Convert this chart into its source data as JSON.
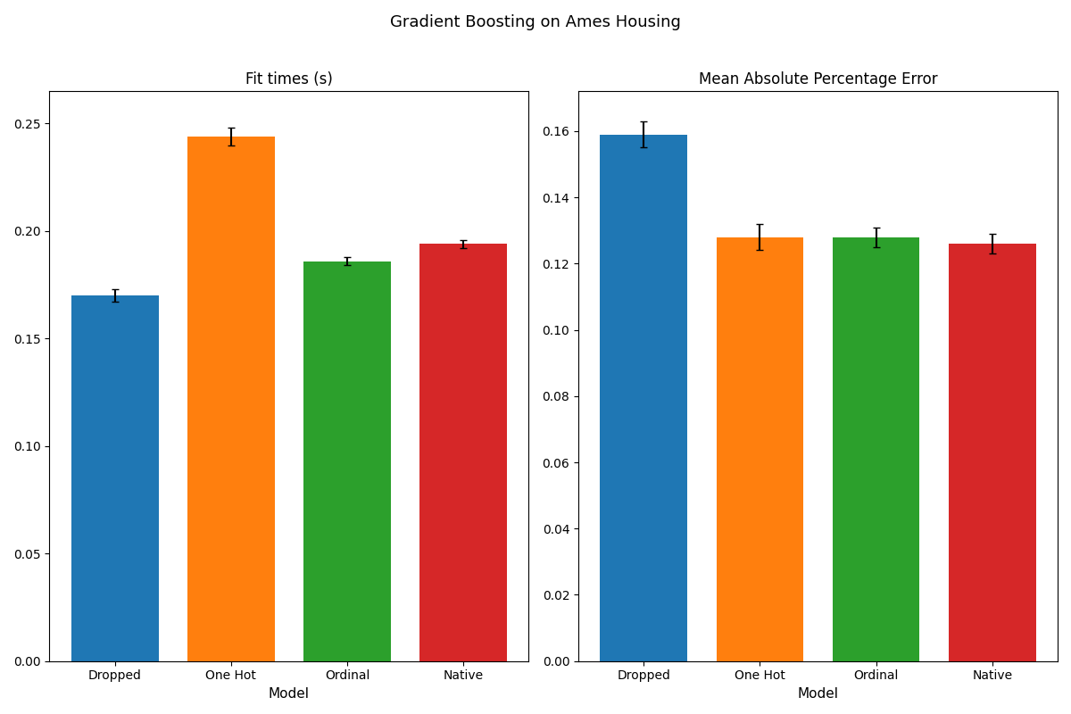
{
  "title": "Gradient Boosting on Ames Housing",
  "categories": [
    "Dropped",
    "One Hot",
    "Ordinal",
    "Native"
  ],
  "colors": [
    "#1f77b4",
    "#ff7f0e",
    "#2ca02c",
    "#d62728"
  ],
  "fit_times": {
    "title": "Fit times (s)",
    "values": [
      0.17,
      0.244,
      0.186,
      0.194
    ],
    "errors": [
      0.003,
      0.004,
      0.002,
      0.002
    ],
    "ylim": [
      0.0,
      0.265
    ],
    "yticks": [
      0.0,
      0.05,
      0.1,
      0.15,
      0.2,
      0.25
    ]
  },
  "mape": {
    "title": "Mean Absolute Percentage Error",
    "values": [
      0.159,
      0.128,
      0.128,
      0.126
    ],
    "errors": [
      0.004,
      0.004,
      0.003,
      0.003
    ],
    "ylim": [
      0.0,
      0.172
    ],
    "yticks": [
      0.0,
      0.02,
      0.04,
      0.06,
      0.08,
      0.1,
      0.12,
      0.14,
      0.16
    ]
  },
  "xlabel": "Model",
  "bar_width": 0.75,
  "figsize": [
    12.0,
    8.0
  ],
  "dpi": 100,
  "title_fontsize": 13,
  "subtitle_fontsize": 12,
  "tick_fontsize": 10,
  "label_fontsize": 11
}
